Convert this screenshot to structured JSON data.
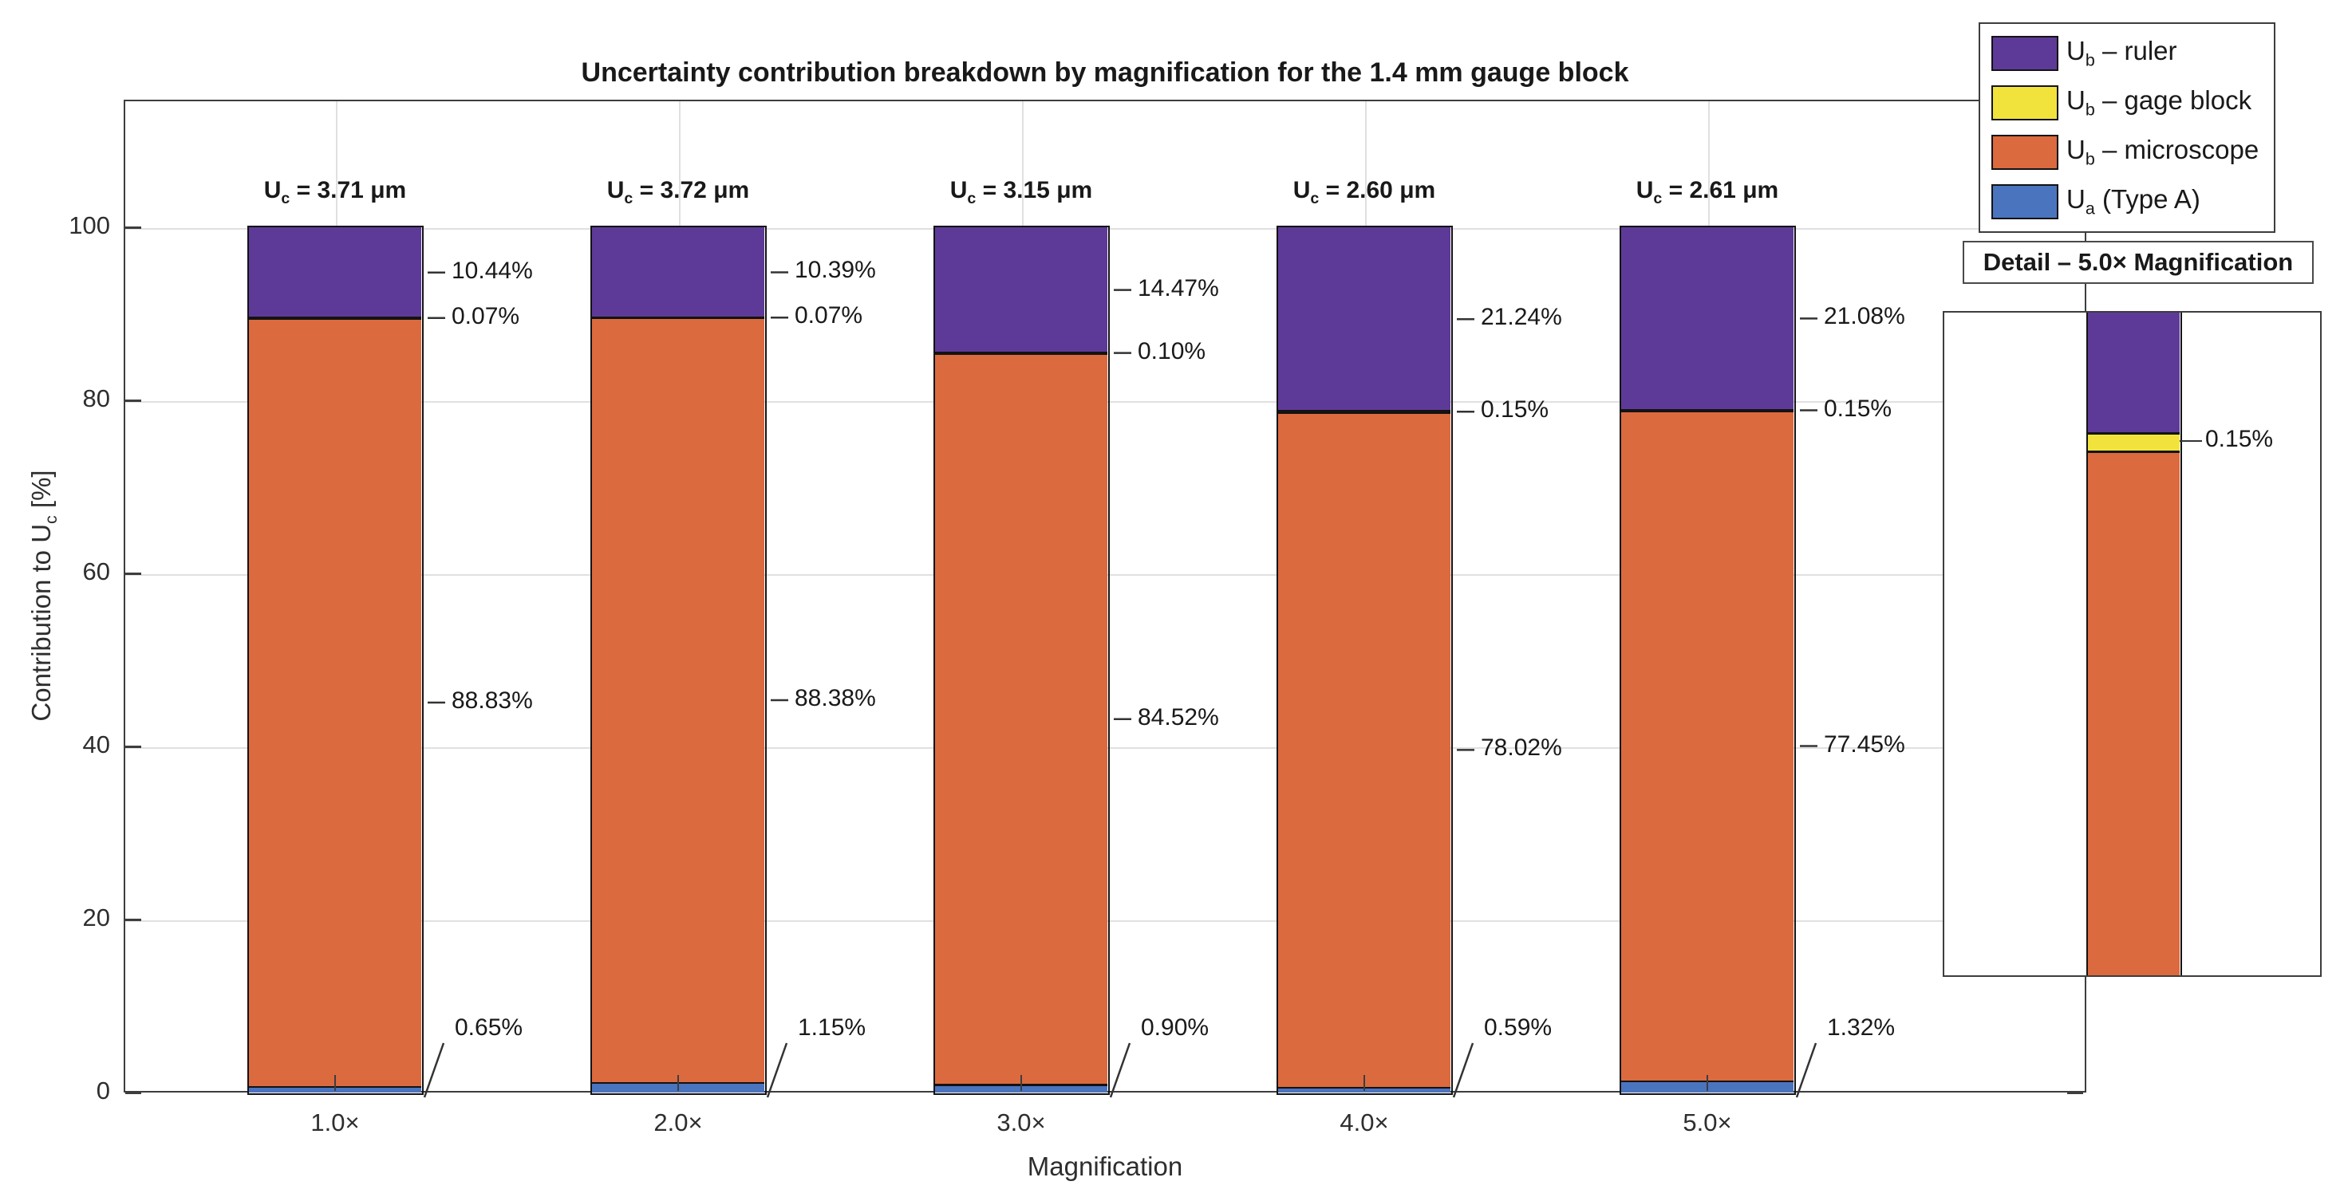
{
  "title": "Uncertainty contribution breakdown by magnification for the 1.4 mm gauge block",
  "axes": {
    "xlabel": "Magnification",
    "ylabel": {
      "prefix": "Contribution to U",
      "sub": "c",
      "suffix": " [%]"
    },
    "yticks": [
      0,
      20,
      40,
      60,
      80,
      100
    ],
    "ylim": [
      0,
      100
    ],
    "grid": true
  },
  "legend": {
    "position": "top-right-outside",
    "items": [
      {
        "symbol": "U",
        "sub": "b",
        "rest": " – ruler",
        "color": "#5E3A98"
      },
      {
        "symbol": "U",
        "sub": "b",
        "rest": " – gage block",
        "color": "#F2E33C"
      },
      {
        "symbol": "U",
        "sub": "b",
        "rest": " – microscope",
        "color": "#DB6A3F"
      },
      {
        "symbol": "U",
        "sub": "a",
        "rest": " (Type A)",
        "color": "#4B74BF"
      }
    ]
  },
  "chart_data": {
    "type": "bar",
    "stacked": true,
    "categories": [
      "1.0×",
      "2.0×",
      "3.0×",
      "4.0×",
      "5.0×"
    ],
    "series": [
      {
        "name": "Ua (Type A)",
        "color": "#4B74BF",
        "values": [
          0.65,
          1.15,
          0.9,
          0.59,
          1.32
        ]
      },
      {
        "name": "Ub - microscope",
        "color": "#DB6A3F",
        "values": [
          88.83,
          88.38,
          84.52,
          78.02,
          77.45
        ]
      },
      {
        "name": "Ub - gage block",
        "color": "#F2E33C",
        "values": [
          0.07,
          0.07,
          0.1,
          0.15,
          0.15
        ]
      },
      {
        "name": "Ub - ruler",
        "color": "#5E3A98",
        "values": [
          10.44,
          10.39,
          14.47,
          21.24,
          21.08
        ]
      }
    ],
    "totals": {
      "prefix": "U",
      "sub": "c",
      "unit": "μm",
      "values_um": [
        3.71,
        3.72,
        3.15,
        2.6,
        2.61
      ]
    },
    "title": "Uncertainty contribution breakdown by magnification for the 1.4 mm gauge block",
    "xlabel": "Magnification",
    "ylabel": "Contribution to Uc [%]",
    "ylim": [
      0,
      100
    ],
    "grid": true,
    "legend_position": "top-right"
  },
  "detail_inset": {
    "title": "Detail – 5.0× Magnification",
    "category": "5.0×",
    "ylim": [
      74.5,
      79.9
    ],
    "label": "0.15%"
  }
}
